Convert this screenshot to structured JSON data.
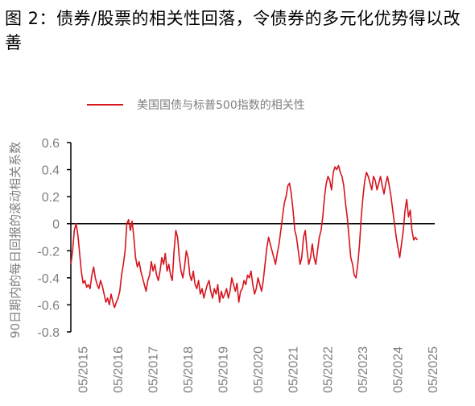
{
  "title": "图 2：债券/股票的相关性回落，令债券的多元化优势得以改善",
  "chart_data": {
    "type": "line",
    "title": "图 2：债券/股票的相关性回落，令债券的多元化优势得以改善",
    "ylabel": "90日期内的每日回报的滚动相关系数",
    "xlabel": "",
    "ylim": [
      -0.8,
      0.6
    ],
    "yticks": [
      "0.6",
      "0.4",
      "0.2",
      "0",
      "-0.2",
      "-0.4",
      "-0.6",
      "-0.8"
    ],
    "xlim": [
      2015.0,
      2025.4
    ],
    "xticks": [
      "05/2015",
      "05/2016",
      "05/2017",
      "05/2018",
      "05/2019",
      "05/2020",
      "05/2021",
      "05/2022",
      "05/2023",
      "05/2024",
      "05/2025"
    ],
    "legend_position": "top",
    "zero_line": true,
    "series": [
      {
        "name": "美国国债与标普500指数的相关性",
        "color": "#d7141e",
        "points": [
          [
            2015.0,
            -0.3
          ],
          [
            2015.05,
            -0.2
          ],
          [
            2015.1,
            -0.05
          ],
          [
            2015.15,
            0.0
          ],
          [
            2015.2,
            -0.08
          ],
          [
            2015.25,
            -0.22
          ],
          [
            2015.3,
            -0.35
          ],
          [
            2015.35,
            -0.44
          ],
          [
            2015.4,
            -0.42
          ],
          [
            2015.45,
            -0.47
          ],
          [
            2015.5,
            -0.45
          ],
          [
            2015.55,
            -0.48
          ],
          [
            2015.6,
            -0.38
          ],
          [
            2015.65,
            -0.32
          ],
          [
            2015.7,
            -0.4
          ],
          [
            2015.75,
            -0.45
          ],
          [
            2015.8,
            -0.48
          ],
          [
            2015.85,
            -0.42
          ],
          [
            2015.9,
            -0.46
          ],
          [
            2015.95,
            -0.52
          ],
          [
            2016.0,
            -0.58
          ],
          [
            2016.05,
            -0.55
          ],
          [
            2016.1,
            -0.6
          ],
          [
            2016.15,
            -0.52
          ],
          [
            2016.2,
            -0.58
          ],
          [
            2016.25,
            -0.62
          ],
          [
            2016.3,
            -0.58
          ],
          [
            2016.35,
            -0.55
          ],
          [
            2016.4,
            -0.5
          ],
          [
            2016.45,
            -0.38
          ],
          [
            2016.5,
            -0.3
          ],
          [
            2016.55,
            -0.2
          ],
          [
            2016.6,
            0.0
          ],
          [
            2016.65,
            0.03
          ],
          [
            2016.7,
            -0.05
          ],
          [
            2016.75,
            0.02
          ],
          [
            2016.8,
            -0.1
          ],
          [
            2016.85,
            -0.25
          ],
          [
            2016.9,
            -0.32
          ],
          [
            2016.95,
            -0.28
          ],
          [
            2017.0,
            -0.35
          ],
          [
            2017.05,
            -0.4
          ],
          [
            2017.1,
            -0.45
          ],
          [
            2017.15,
            -0.5
          ],
          [
            2017.2,
            -0.42
          ],
          [
            2017.25,
            -0.38
          ],
          [
            2017.3,
            -0.28
          ],
          [
            2017.35,
            -0.35
          ],
          [
            2017.4,
            -0.3
          ],
          [
            2017.45,
            -0.38
          ],
          [
            2017.5,
            -0.42
          ],
          [
            2017.55,
            -0.35
          ],
          [
            2017.6,
            -0.25
          ],
          [
            2017.65,
            -0.3
          ],
          [
            2017.7,
            -0.22
          ],
          [
            2017.75,
            -0.35
          ],
          [
            2017.8,
            -0.3
          ],
          [
            2017.85,
            -0.38
          ],
          [
            2017.9,
            -0.42
          ],
          [
            2017.95,
            -0.2
          ],
          [
            2018.0,
            -0.05
          ],
          [
            2018.05,
            -0.1
          ],
          [
            2018.1,
            -0.25
          ],
          [
            2018.15,
            -0.35
          ],
          [
            2018.2,
            -0.4
          ],
          [
            2018.25,
            -0.32
          ],
          [
            2018.3,
            -0.2
          ],
          [
            2018.35,
            -0.25
          ],
          [
            2018.4,
            -0.38
          ],
          [
            2018.45,
            -0.42
          ],
          [
            2018.5,
            -0.35
          ],
          [
            2018.55,
            -0.45
          ],
          [
            2018.6,
            -0.48
          ],
          [
            2018.65,
            -0.42
          ],
          [
            2018.7,
            -0.52
          ],
          [
            2018.75,
            -0.48
          ],
          [
            2018.8,
            -0.55
          ],
          [
            2018.85,
            -0.5
          ],
          [
            2018.9,
            -0.45
          ],
          [
            2018.95,
            -0.42
          ],
          [
            2019.0,
            -0.5
          ],
          [
            2019.05,
            -0.55
          ],
          [
            2019.1,
            -0.48
          ],
          [
            2019.15,
            -0.52
          ],
          [
            2019.2,
            -0.45
          ],
          [
            2019.25,
            -0.58
          ],
          [
            2019.3,
            -0.5
          ],
          [
            2019.35,
            -0.55
          ],
          [
            2019.4,
            -0.52
          ],
          [
            2019.45,
            -0.48
          ],
          [
            2019.5,
            -0.55
          ],
          [
            2019.55,
            -0.5
          ],
          [
            2019.6,
            -0.4
          ],
          [
            2019.65,
            -0.45
          ],
          [
            2019.7,
            -0.5
          ],
          [
            2019.75,
            -0.44
          ],
          [
            2019.8,
            -0.58
          ],
          [
            2019.85,
            -0.5
          ],
          [
            2019.9,
            -0.48
          ],
          [
            2019.95,
            -0.42
          ],
          [
            2020.0,
            -0.45
          ],
          [
            2020.05,
            -0.38
          ],
          [
            2020.1,
            -0.4
          ],
          [
            2020.15,
            -0.35
          ],
          [
            2020.2,
            -0.45
          ],
          [
            2020.25,
            -0.52
          ],
          [
            2020.3,
            -0.48
          ],
          [
            2020.35,
            -0.4
          ],
          [
            2020.4,
            -0.45
          ],
          [
            2020.45,
            -0.5
          ],
          [
            2020.5,
            -0.42
          ],
          [
            2020.55,
            -0.3
          ],
          [
            2020.6,
            -0.18
          ],
          [
            2020.65,
            -0.1
          ],
          [
            2020.7,
            -0.15
          ],
          [
            2020.75,
            -0.2
          ],
          [
            2020.8,
            -0.25
          ],
          [
            2020.85,
            -0.3
          ],
          [
            2020.9,
            -0.22
          ],
          [
            2020.95,
            -0.15
          ],
          [
            2021.0,
            -0.05
          ],
          [
            2021.05,
            0.05
          ],
          [
            2021.1,
            0.15
          ],
          [
            2021.15,
            0.2
          ],
          [
            2021.2,
            0.28
          ],
          [
            2021.25,
            0.3
          ],
          [
            2021.3,
            0.22
          ],
          [
            2021.35,
            0.1
          ],
          [
            2021.4,
            -0.05
          ],
          [
            2021.45,
            -0.1
          ],
          [
            2021.5,
            -0.2
          ],
          [
            2021.55,
            -0.3
          ],
          [
            2021.6,
            -0.25
          ],
          [
            2021.65,
            -0.1
          ],
          [
            2021.7,
            -0.05
          ],
          [
            2021.75,
            -0.2
          ],
          [
            2021.8,
            -0.3
          ],
          [
            2021.85,
            -0.25
          ],
          [
            2021.9,
            -0.15
          ],
          [
            2021.95,
            -0.25
          ],
          [
            2022.0,
            -0.3
          ],
          [
            2022.05,
            -0.2
          ],
          [
            2022.1,
            -0.1
          ],
          [
            2022.15,
            -0.05
          ],
          [
            2022.2,
            0.05
          ],
          [
            2022.25,
            0.2
          ],
          [
            2022.3,
            0.3
          ],
          [
            2022.35,
            0.35
          ],
          [
            2022.4,
            0.32
          ],
          [
            2022.45,
            0.25
          ],
          [
            2022.5,
            0.38
          ],
          [
            2022.55,
            0.42
          ],
          [
            2022.6,
            0.4
          ],
          [
            2022.65,
            0.43
          ],
          [
            2022.7,
            0.38
          ],
          [
            2022.75,
            0.35
          ],
          [
            2022.8,
            0.28
          ],
          [
            2022.85,
            0.15
          ],
          [
            2022.9,
            0.05
          ],
          [
            2022.95,
            -0.1
          ],
          [
            2023.0,
            -0.25
          ],
          [
            2023.05,
            -0.3
          ],
          [
            2023.1,
            -0.38
          ],
          [
            2023.15,
            -0.4
          ],
          [
            2023.2,
            -0.3
          ],
          [
            2023.25,
            -0.15
          ],
          [
            2023.3,
            0.05
          ],
          [
            2023.35,
            0.2
          ],
          [
            2023.4,
            0.32
          ],
          [
            2023.45,
            0.38
          ],
          [
            2023.5,
            0.35
          ],
          [
            2023.55,
            0.3
          ],
          [
            2023.6,
            0.25
          ],
          [
            2023.65,
            0.35
          ],
          [
            2023.7,
            0.32
          ],
          [
            2023.75,
            0.25
          ],
          [
            2023.8,
            0.3
          ],
          [
            2023.85,
            0.35
          ],
          [
            2023.9,
            0.28
          ],
          [
            2023.95,
            0.22
          ],
          [
            2024.0,
            0.3
          ],
          [
            2024.05,
            0.35
          ],
          [
            2024.1,
            0.28
          ],
          [
            2024.15,
            0.2
          ],
          [
            2024.2,
            0.1
          ],
          [
            2024.25,
            0.0
          ],
          [
            2024.3,
            -0.1
          ],
          [
            2024.35,
            -0.18
          ],
          [
            2024.4,
            -0.25
          ],
          [
            2024.45,
            -0.15
          ],
          [
            2024.5,
            -0.05
          ],
          [
            2024.55,
            0.1
          ],
          [
            2024.6,
            0.18
          ],
          [
            2024.65,
            0.05
          ],
          [
            2024.7,
            0.1
          ],
          [
            2024.75,
            -0.05
          ],
          [
            2024.8,
            -0.12
          ],
          [
            2024.85,
            -0.1
          ],
          [
            2024.9,
            -0.12
          ]
        ]
      }
    ]
  }
}
